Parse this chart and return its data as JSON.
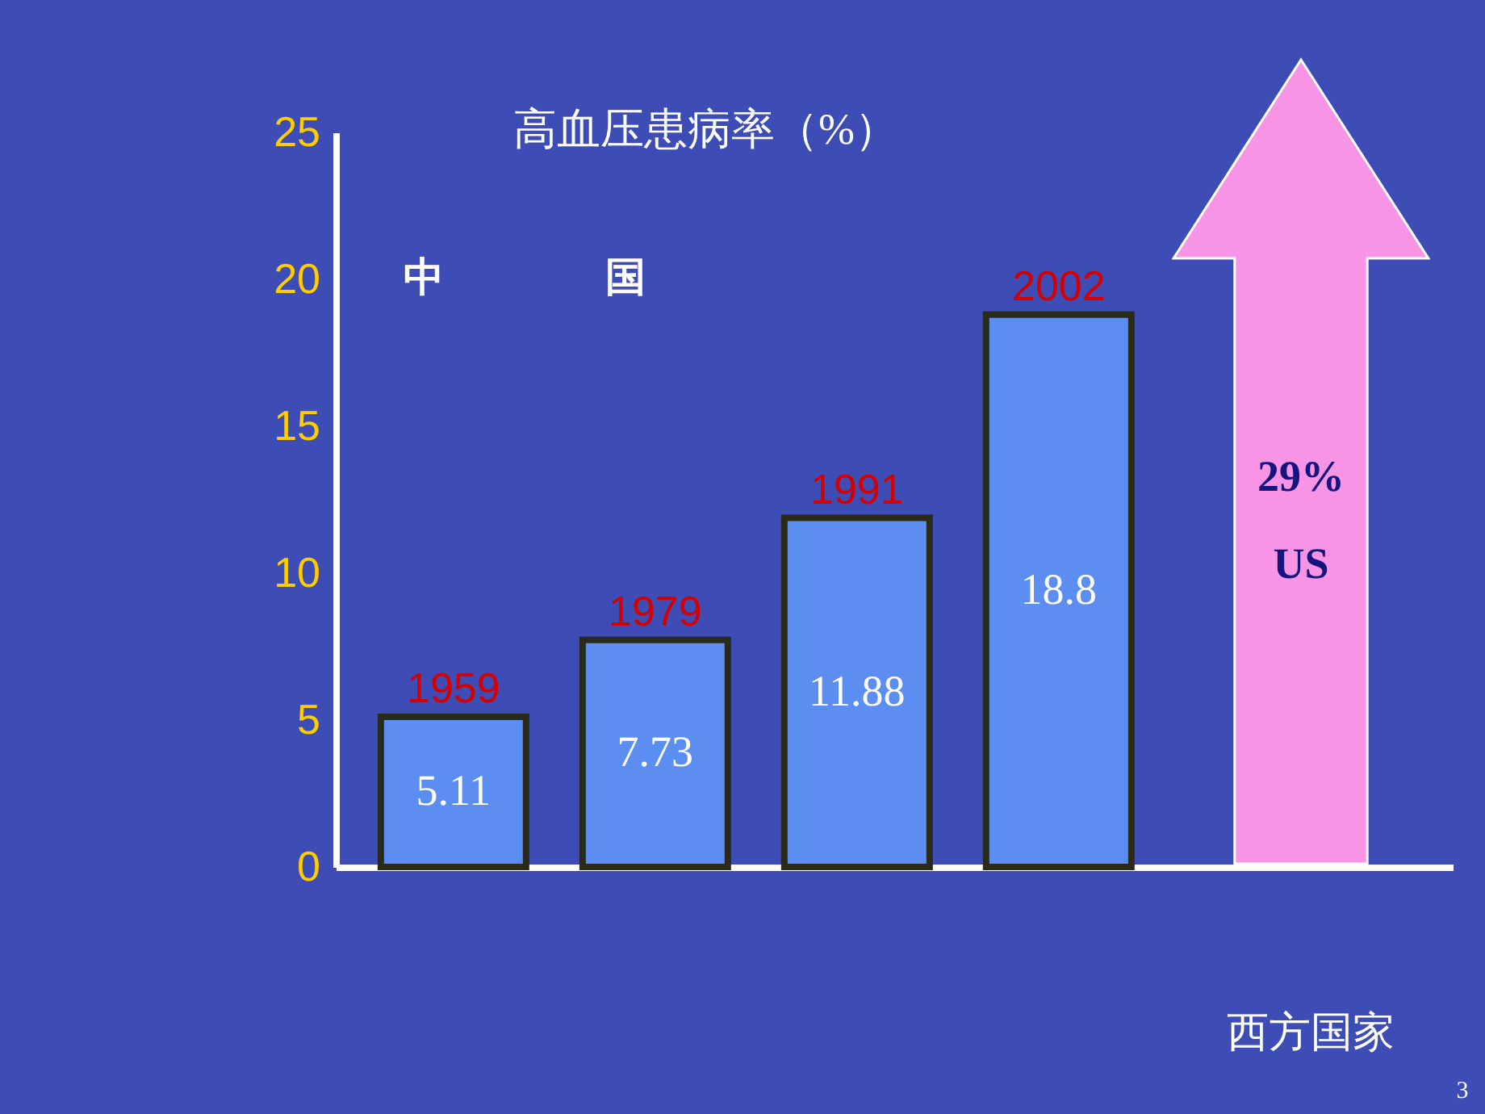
{
  "chart_data": {
    "type": "bar",
    "title": "高血压患病率（%）",
    "categories": [
      "1959",
      "1979",
      "1991",
      "2002"
    ],
    "values": [
      5.11,
      7.73,
      11.88,
      18.8
    ],
    "color": "#5b8ef0",
    "ylim": [
      0,
      25
    ],
    "yticks": [
      0,
      5,
      10,
      15,
      20,
      25
    ],
    "grid": false,
    "data_labels": true,
    "annotations": [
      "中　　　　国",
      "29%",
      "US",
      "西方国家",
      "3"
    ]
  }
}
